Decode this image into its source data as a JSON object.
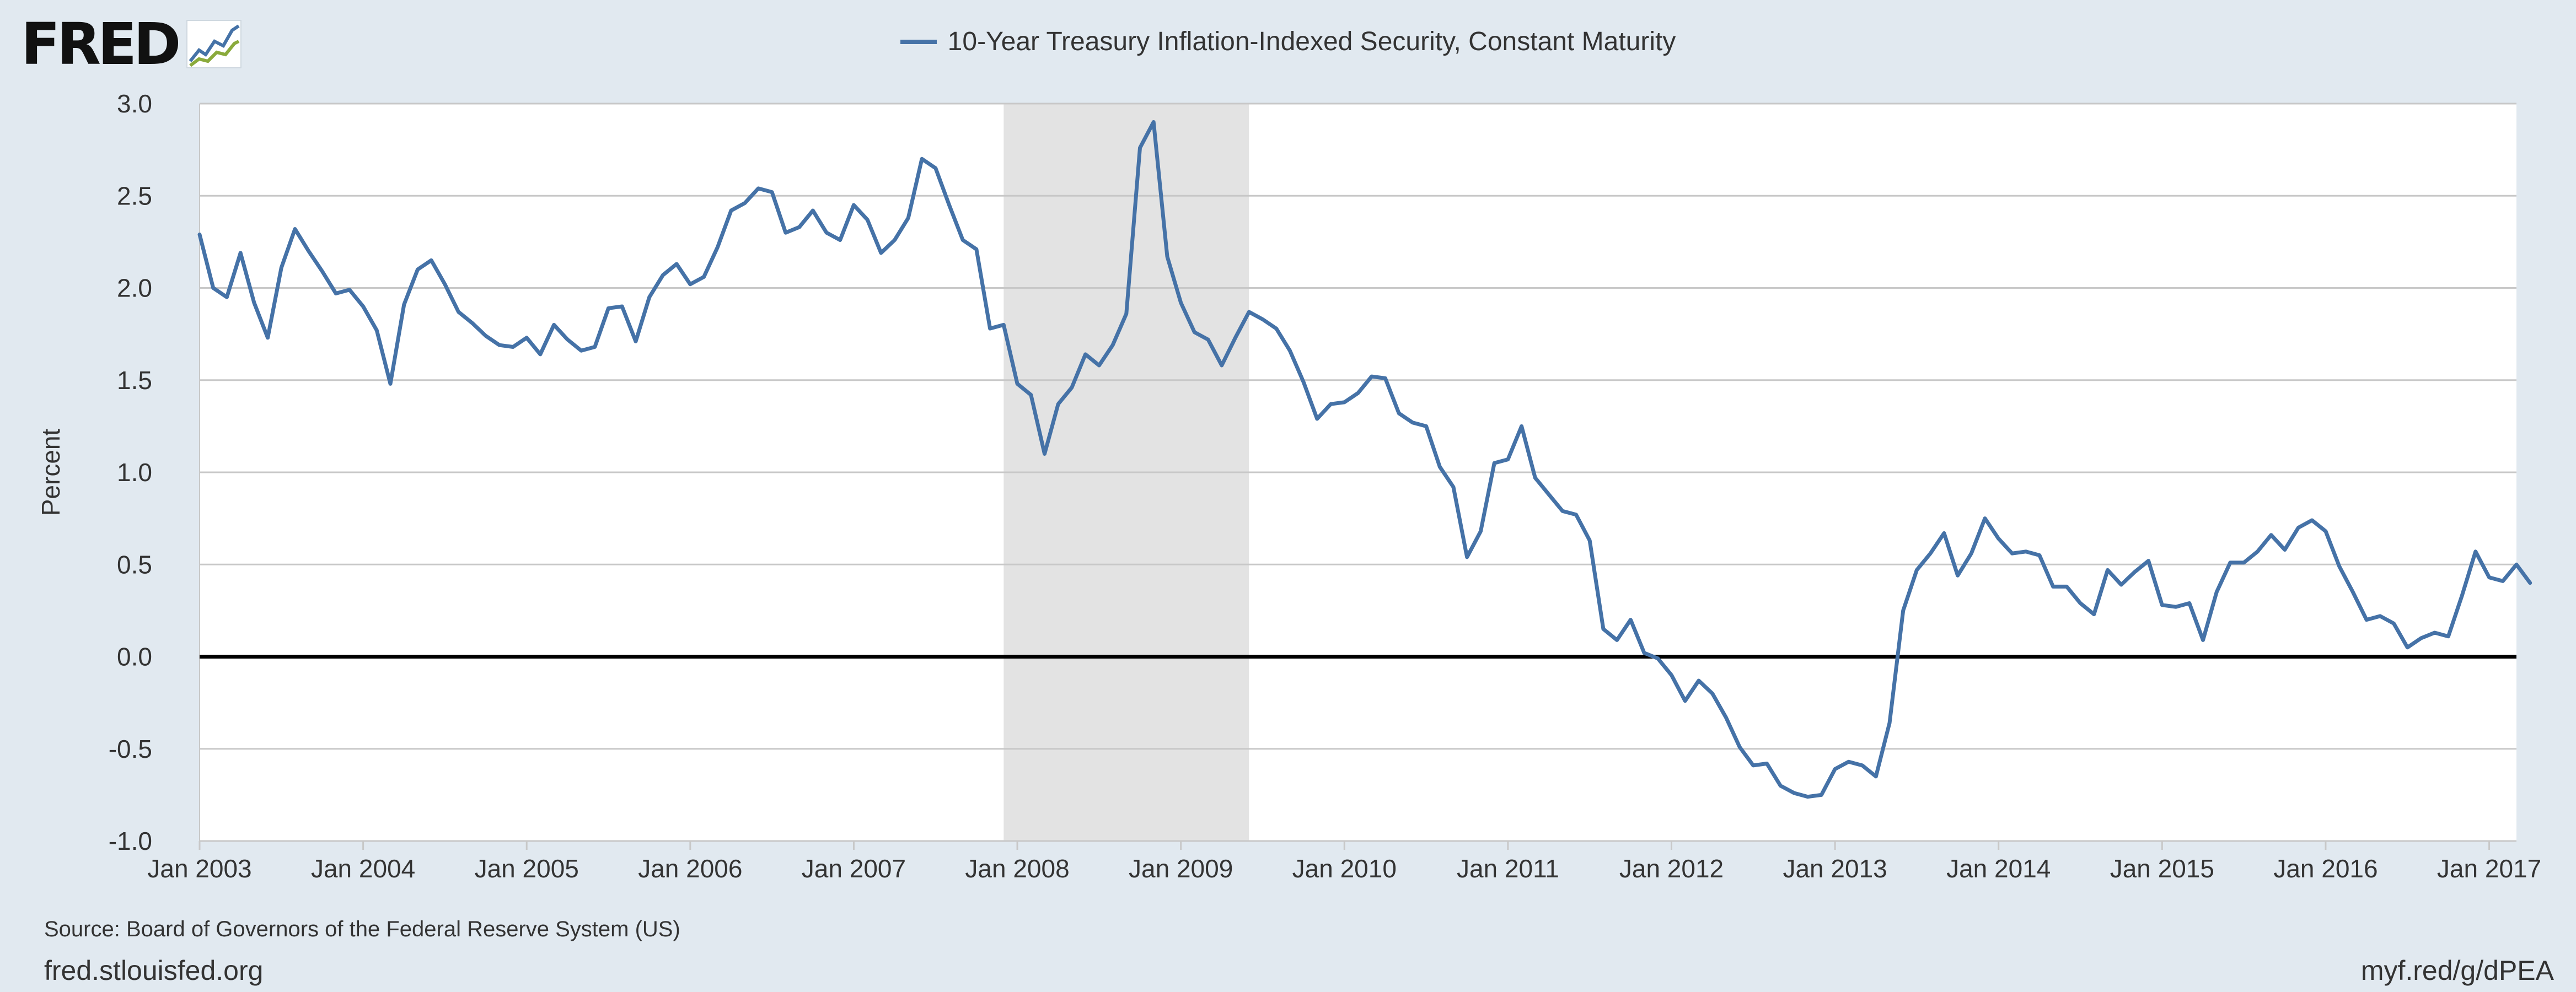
{
  "header": {
    "logo_text": "FRED",
    "logo_icon": "line-chart-icon"
  },
  "chart_data": {
    "type": "line",
    "title": "",
    "series_name": "10-Year Treasury Inflation-Indexed Security, Constant Maturity",
    "ylabel": "Percent",
    "xlabel": "",
    "ylim": [
      -1.0,
      3.0
    ],
    "yticks": [
      3.0,
      2.5,
      2.0,
      1.5,
      1.0,
      0.5,
      0.0,
      -0.5,
      -1.0
    ],
    "ytick_labels": [
      "3.0",
      "2.5",
      "2.0",
      "1.5",
      "1.0",
      "0.5",
      "0.0",
      "-0.5",
      "-1.0"
    ],
    "x_start": "2003-01",
    "x_end": "2017-03",
    "xticks": [
      "2003-01",
      "2004-01",
      "2005-01",
      "2006-01",
      "2007-01",
      "2008-01",
      "2009-01",
      "2010-01",
      "2011-01",
      "2012-01",
      "2013-01",
      "2014-01",
      "2015-01",
      "2016-01",
      "2017-01"
    ],
    "xtick_labels": [
      "Jan 2003",
      "Jan 2004",
      "Jan 2005",
      "Jan 2006",
      "Jan 2007",
      "Jan 2008",
      "Jan 2009",
      "Jan 2010",
      "Jan 2011",
      "Jan 2012",
      "Jan 2013",
      "Jan 2014",
      "Jan 2015",
      "Jan 2016",
      "Jan 2017"
    ],
    "recession": {
      "start": "2007-12",
      "end": "2009-06"
    },
    "grid": true,
    "legend_position": "top-center",
    "line_color": "#4572a7",
    "series": [
      {
        "name": "10-Year Treasury Inflation-Indexed Security, Constant Maturity",
        "points": [
          [
            "2003-01",
            2.29
          ],
          [
            "2003-02",
            2.0
          ],
          [
            "2003-03",
            1.95
          ],
          [
            "2003-04",
            2.19
          ],
          [
            "2003-05",
            1.92
          ],
          [
            "2003-06",
            1.73
          ],
          [
            "2003-07",
            2.11
          ],
          [
            "2003-08",
            2.32
          ],
          [
            "2003-09",
            2.2
          ],
          [
            "2003-10",
            2.09
          ],
          [
            "2003-11",
            1.97
          ],
          [
            "2003-12",
            1.99
          ],
          [
            "2004-01",
            1.9
          ],
          [
            "2004-02",
            1.77
          ],
          [
            "2004-03",
            1.48
          ],
          [
            "2004-04",
            1.91
          ],
          [
            "2004-05",
            2.1
          ],
          [
            "2004-06",
            2.15
          ],
          [
            "2004-07",
            2.02
          ],
          [
            "2004-08",
            1.87
          ],
          [
            "2004-09",
            1.81
          ],
          [
            "2004-10",
            1.74
          ],
          [
            "2004-11",
            1.69
          ],
          [
            "2004-12",
            1.68
          ],
          [
            "2005-01",
            1.73
          ],
          [
            "2005-02",
            1.64
          ],
          [
            "2005-03",
            1.8
          ],
          [
            "2005-04",
            1.72
          ],
          [
            "2005-05",
            1.66
          ],
          [
            "2005-06",
            1.68
          ],
          [
            "2005-07",
            1.89
          ],
          [
            "2005-08",
            1.9
          ],
          [
            "2005-09",
            1.71
          ],
          [
            "2005-10",
            1.95
          ],
          [
            "2005-11",
            2.07
          ],
          [
            "2005-12",
            2.13
          ],
          [
            "2006-01",
            2.02
          ],
          [
            "2006-02",
            2.06
          ],
          [
            "2006-03",
            2.22
          ],
          [
            "2006-04",
            2.42
          ],
          [
            "2006-05",
            2.46
          ],
          [
            "2006-06",
            2.54
          ],
          [
            "2006-07",
            2.52
          ],
          [
            "2006-08",
            2.3
          ],
          [
            "2006-09",
            2.33
          ],
          [
            "2006-10",
            2.42
          ],
          [
            "2006-11",
            2.3
          ],
          [
            "2006-12",
            2.26
          ],
          [
            "2007-01",
            2.45
          ],
          [
            "2007-02",
            2.37
          ],
          [
            "2007-03",
            2.19
          ],
          [
            "2007-04",
            2.26
          ],
          [
            "2007-05",
            2.38
          ],
          [
            "2007-06",
            2.7
          ],
          [
            "2007-07",
            2.65
          ],
          [
            "2007-08",
            2.45
          ],
          [
            "2007-09",
            2.26
          ],
          [
            "2007-10",
            2.21
          ],
          [
            "2007-11",
            1.78
          ],
          [
            "2007-12",
            1.8
          ],
          [
            "2008-01",
            1.48
          ],
          [
            "2008-02",
            1.42
          ],
          [
            "2008-03",
            1.1
          ],
          [
            "2008-04",
            1.37
          ],
          [
            "2008-05",
            1.46
          ],
          [
            "2008-06",
            1.64
          ],
          [
            "2008-07",
            1.58
          ],
          [
            "2008-08",
            1.69
          ],
          [
            "2008-09",
            1.86
          ],
          [
            "2008-10",
            2.76
          ],
          [
            "2008-11",
            2.9
          ],
          [
            "2008-12",
            2.17
          ],
          [
            "2009-01",
            1.92
          ],
          [
            "2009-02",
            1.76
          ],
          [
            "2009-03",
            1.72
          ],
          [
            "2009-04",
            1.58
          ],
          [
            "2009-05",
            1.73
          ],
          [
            "2009-06",
            1.87
          ],
          [
            "2009-07",
            1.83
          ],
          [
            "2009-08",
            1.78
          ],
          [
            "2009-09",
            1.66
          ],
          [
            "2009-10",
            1.49
          ],
          [
            "2009-11",
            1.29
          ],
          [
            "2009-12",
            1.37
          ],
          [
            "2010-01",
            1.38
          ],
          [
            "2010-02",
            1.43
          ],
          [
            "2010-03",
            1.52
          ],
          [
            "2010-04",
            1.51
          ],
          [
            "2010-05",
            1.32
          ],
          [
            "2010-06",
            1.27
          ],
          [
            "2010-07",
            1.25
          ],
          [
            "2010-08",
            1.03
          ],
          [
            "2010-09",
            0.92
          ],
          [
            "2010-10",
            0.54
          ],
          [
            "2010-11",
            0.68
          ],
          [
            "2010-12",
            1.05
          ],
          [
            "2011-01",
            1.07
          ],
          [
            "2011-02",
            1.25
          ],
          [
            "2011-03",
            0.97
          ],
          [
            "2011-04",
            0.88
          ],
          [
            "2011-05",
            0.79
          ],
          [
            "2011-06",
            0.77
          ],
          [
            "2011-07",
            0.63
          ],
          [
            "2011-08",
            0.15
          ],
          [
            "2011-09",
            0.09
          ],
          [
            "2011-10",
            0.2
          ],
          [
            "2011-11",
            0.02
          ],
          [
            "2011-12",
            -0.01
          ],
          [
            "2012-01",
            -0.1
          ],
          [
            "2012-02",
            -0.24
          ],
          [
            "2012-03",
            -0.13
          ],
          [
            "2012-04",
            -0.2
          ],
          [
            "2012-05",
            -0.33
          ],
          [
            "2012-06",
            -0.49
          ],
          [
            "2012-07",
            -0.59
          ],
          [
            "2012-08",
            -0.58
          ],
          [
            "2012-09",
            -0.7
          ],
          [
            "2012-10",
            -0.74
          ],
          [
            "2012-11",
            -0.76
          ],
          [
            "2012-12",
            -0.75
          ],
          [
            "2013-01",
            -0.61
          ],
          [
            "2013-02",
            -0.57
          ],
          [
            "2013-03",
            -0.59
          ],
          [
            "2013-04",
            -0.65
          ],
          [
            "2013-05",
            -0.36
          ],
          [
            "2013-06",
            0.25
          ],
          [
            "2013-07",
            0.47
          ],
          [
            "2013-08",
            0.56
          ],
          [
            "2013-09",
            0.67
          ],
          [
            "2013-10",
            0.44
          ],
          [
            "2013-11",
            0.56
          ],
          [
            "2013-12",
            0.75
          ],
          [
            "2014-01",
            0.64
          ],
          [
            "2014-02",
            0.56
          ],
          [
            "2014-03",
            0.57
          ],
          [
            "2014-04",
            0.55
          ],
          [
            "2014-05",
            0.38
          ],
          [
            "2014-06",
            0.38
          ],
          [
            "2014-07",
            0.29
          ],
          [
            "2014-08",
            0.23
          ],
          [
            "2014-09",
            0.47
          ],
          [
            "2014-10",
            0.39
          ],
          [
            "2014-11",
            0.46
          ],
          [
            "2014-12",
            0.52
          ],
          [
            "2015-01",
            0.28
          ],
          [
            "2015-02",
            0.27
          ],
          [
            "2015-03",
            0.29
          ],
          [
            "2015-04",
            0.09
          ],
          [
            "2015-05",
            0.35
          ],
          [
            "2015-06",
            0.51
          ],
          [
            "2015-07",
            0.51
          ],
          [
            "2015-08",
            0.57
          ],
          [
            "2015-09",
            0.66
          ],
          [
            "2015-10",
            0.58
          ],
          [
            "2015-11",
            0.7
          ],
          [
            "2015-12",
            0.74
          ],
          [
            "2016-01",
            0.68
          ],
          [
            "2016-02",
            0.49
          ],
          [
            "2016-03",
            0.35
          ],
          [
            "2016-04",
            0.2
          ],
          [
            "2016-05",
            0.22
          ],
          [
            "2016-06",
            0.18
          ],
          [
            "2016-07",
            0.05
          ],
          [
            "2016-08",
            0.1
          ],
          [
            "2016-09",
            0.13
          ],
          [
            "2016-10",
            0.11
          ],
          [
            "2016-11",
            0.33
          ],
          [
            "2016-12",
            0.57
          ],
          [
            "2017-01",
            0.43
          ],
          [
            "2017-02",
            0.41
          ],
          [
            "2017-03",
            0.5
          ],
          [
            "2017-04",
            0.4
          ]
        ]
      }
    ]
  },
  "footer": {
    "source": "Source: Board of Governors of the Federal Reserve System (US)",
    "site": "fred.stlouisfed.org",
    "short_link": "myf.red/g/dPEA"
  }
}
